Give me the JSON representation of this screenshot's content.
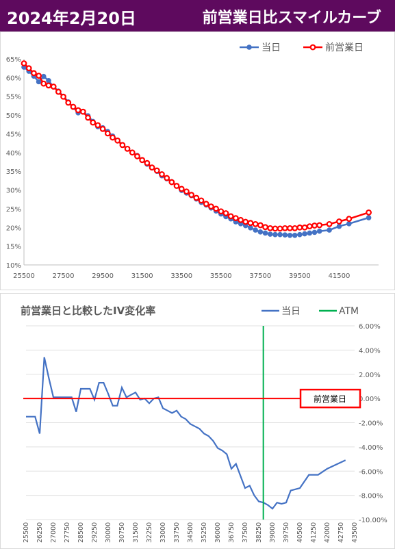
{
  "header": {
    "date": "2024年2月20日",
    "title": "前営業日比スマイルカーブ"
  },
  "colors": {
    "title_bg": "#5e0a5e",
    "today": "#4472c4",
    "prev": "#ff0000",
    "atm": "#00b050"
  },
  "chart_data": [
    {
      "type": "line",
      "title": "",
      "series": [
        {
          "name": "当日",
          "color": "#4472c4",
          "marker": "circle",
          "x": [
            25500,
            25750,
            26000,
            26250,
            26500,
            26750,
            27000,
            27250,
            27500,
            27750,
            28000,
            28250,
            28500,
            28750,
            29000,
            29250,
            29500,
            29750,
            30000,
            30250,
            30500,
            30750,
            31000,
            31250,
            31500,
            31750,
            32000,
            32250,
            32500,
            32750,
            33000,
            33250,
            33500,
            33750,
            34000,
            34250,
            34500,
            34750,
            35000,
            35250,
            35500,
            35750,
            36000,
            36250,
            36500,
            36750,
            37000,
            37250,
            37500,
            37750,
            38000,
            38250,
            38500,
            38750,
            39000,
            39250,
            39500,
            39750,
            40000,
            40250,
            40500,
            41000,
            41500,
            42000,
            43000
          ],
          "y": [
            62.8,
            61.7,
            60.4,
            58.9,
            60.3,
            59.2,
            57.5,
            56.4,
            55.0,
            53.5,
            52.1,
            50.6,
            50.9,
            49.8,
            48.3,
            46.9,
            46.6,
            45.6,
            44.4,
            43.3,
            42.0,
            41.0,
            40.0,
            39.2,
            37.9,
            36.9,
            35.9,
            35.0,
            33.8,
            33.0,
            32.2,
            31.1,
            29.9,
            29.2,
            28.5,
            27.6,
            26.7,
            26.0,
            25.2,
            24.4,
            23.6,
            22.9,
            22.3,
            21.5,
            21.0,
            20.5,
            19.9,
            19.3,
            18.8,
            18.5,
            18.2,
            18.1,
            18.1,
            18.0,
            17.9,
            17.9,
            18.1,
            18.3,
            18.5,
            18.7,
            19.0,
            19.3,
            20.3,
            21.0,
            22.6
          ]
        },
        {
          "name": "前営業日",
          "color": "#ff0000",
          "marker": "circle",
          "x": [
            25500,
            25750,
            26000,
            26250,
            26500,
            26750,
            27000,
            27250,
            27500,
            27750,
            28000,
            28250,
            28500,
            28750,
            29000,
            29250,
            29500,
            29750,
            30000,
            30250,
            30500,
            30750,
            31000,
            31250,
            31500,
            31750,
            32000,
            32250,
            32500,
            32750,
            33000,
            33250,
            33500,
            33750,
            34000,
            34250,
            34500,
            34750,
            35000,
            35250,
            35500,
            35750,
            36000,
            36250,
            36500,
            36750,
            37000,
            37250,
            37500,
            37750,
            38000,
            38250,
            38500,
            38750,
            39000,
            39250,
            39500,
            39750,
            40000,
            40250,
            40500,
            41000,
            41500,
            42000,
            43000
          ],
          "y": [
            63.8,
            62.5,
            61.2,
            60.5,
            58.4,
            57.9,
            57.6,
            56.2,
            54.9,
            53.3,
            52.2,
            51.3,
            50.9,
            49.3,
            48.0,
            47.3,
            46.3,
            45.1,
            44.0,
            43.2,
            42.0,
            41.0,
            40.0,
            39.0,
            38.0,
            37.2,
            36.0,
            35.2,
            34.2,
            33.2,
            32.1,
            31.1,
            30.3,
            29.6,
            28.7,
            27.9,
            27.2,
            26.3,
            25.6,
            25.0,
            24.3,
            23.8,
            23.0,
            22.5,
            22.0,
            21.5,
            21.2,
            20.9,
            20.6,
            20.1,
            19.8,
            19.7,
            19.7,
            19.8,
            19.8,
            19.8,
            20.0,
            20.0,
            20.3,
            20.5,
            20.6,
            20.9,
            21.6,
            22.3,
            24.0
          ]
        }
      ],
      "x_ticks": [
        "25500",
        "27500",
        "29500",
        "31500",
        "33500",
        "35500",
        "37500",
        "39500",
        "41500"
      ],
      "xlim": [
        25500,
        43500
      ],
      "y_ticks": [
        "10%",
        "15%",
        "20%",
        "25%",
        "30%",
        "35%",
        "40%",
        "45%",
        "50%",
        "55%",
        "60%",
        "65%"
      ],
      "ylim": [
        10,
        65
      ],
      "legend": "top-right",
      "grid": false
    },
    {
      "type": "line",
      "title": "前営業日と比較したIV変化率",
      "series": [
        {
          "name": "当日",
          "color": "#4472c4",
          "x": [
            25500,
            25750,
            26000,
            26250,
            26500,
            26750,
            27000,
            27250,
            27500,
            27750,
            28000,
            28250,
            28500,
            28750,
            29000,
            29250,
            29500,
            29750,
            30000,
            30250,
            30500,
            30750,
            31000,
            31250,
            31500,
            31750,
            32000,
            32250,
            32500,
            32750,
            33000,
            33250,
            33500,
            33750,
            34000,
            34250,
            34500,
            34750,
            35000,
            35250,
            35500,
            35750,
            36000,
            36250,
            36500,
            36750,
            37000,
            37250,
            37500,
            37750,
            38000,
            38250,
            38500,
            38750,
            39000,
            39250,
            39500,
            39750,
            40000,
            40250,
            40500,
            41000,
            41500,
            42000,
            43000
          ],
          "y": [
            -1.5,
            -1.5,
            -1.5,
            -2.9,
            3.4,
            1.7,
            0.1,
            0.1,
            0.1,
            0.1,
            0.1,
            -1.1,
            0.8,
            0.8,
            0.8,
            -0.1,
            1.3,
            1.3,
            0.4,
            -0.6,
            -0.6,
            0.9,
            0.1,
            0.3,
            0.5,
            -0.1,
            0.0,
            -0.4,
            0.0,
            0.1,
            -0.8,
            -1.0,
            -1.2,
            -1.0,
            -1.5,
            -1.7,
            -2.1,
            -2.3,
            -2.5,
            -2.9,
            -3.1,
            -3.5,
            -4.1,
            -4.3,
            -4.6,
            -5.8,
            -5.4,
            -6.4,
            -7.4,
            -7.2,
            -8.0,
            -8.5,
            -8.6,
            -8.8,
            -9.1,
            -8.6,
            -8.7,
            -8.6,
            -7.6,
            -7.5,
            -7.4,
            -6.3,
            -6.3,
            -5.8,
            -5.1
          ]
        },
        {
          "name": "ATM",
          "color": "#00b050",
          "x": [
            38500,
            38500
          ],
          "y": [
            6,
            -10
          ]
        }
      ],
      "reference": {
        "label": "前営業日",
        "y": 0,
        "color": "#ff0000"
      },
      "x_ticks": [
        "25500",
        "26250",
        "27000",
        "27750",
        "28500",
        "29250",
        "30000",
        "30750",
        "31500",
        "32250",
        "33000",
        "33750",
        "34500",
        "35250",
        "36000",
        "36750",
        "37500",
        "38250",
        "39000",
        "39750",
        "40500",
        "41250",
        "42000",
        "42750",
        "43500"
      ],
      "xlim": [
        25500,
        43500
      ],
      "y_ticks": [
        "6.00%",
        "4.00%",
        "2.00%",
        "0.00%",
        "-2.00%",
        "-4.00%",
        "-6.00%",
        "-8.00%",
        "-10.00%"
      ],
      "ylim": [
        -10,
        6
      ],
      "legend": "top-right",
      "grid": true
    }
  ]
}
